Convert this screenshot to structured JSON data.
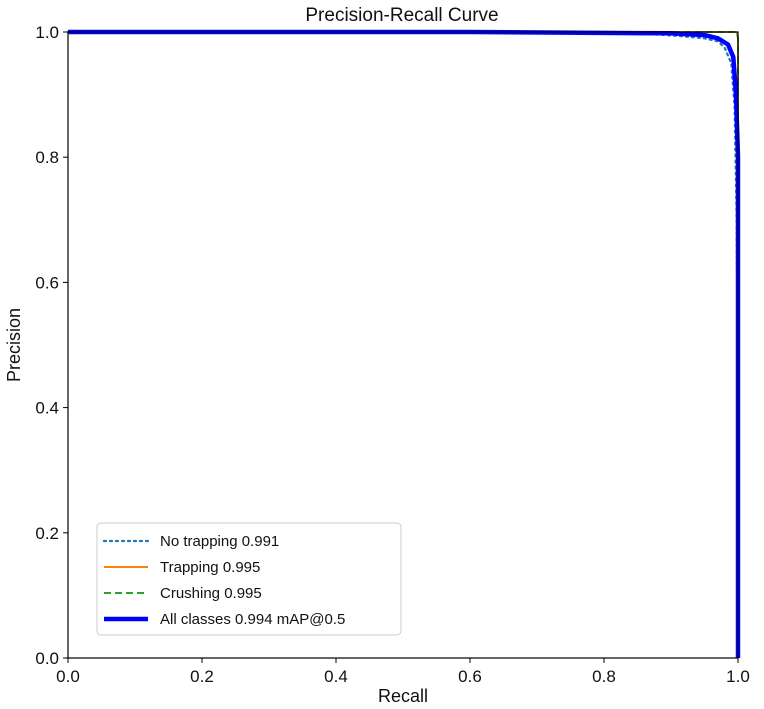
{
  "chart_data": {
    "type": "line",
    "title": "Precision-Recall Curve",
    "xlabel": "Recall",
    "ylabel": "Precision",
    "xlim": [
      0.0,
      1.0
    ],
    "ylim": [
      0.0,
      1.0
    ],
    "x_ticks": [
      "0.0",
      "0.2",
      "0.4",
      "0.6",
      "0.8",
      "1.0"
    ],
    "y_ticks": [
      "0.0",
      "0.2",
      "0.4",
      "0.6",
      "0.8",
      "1.0"
    ],
    "grid": false,
    "legend_position": "lower-left",
    "series": [
      {
        "name": "No trapping 0.991",
        "color": "#1f77b4",
        "style": "dotted",
        "x": [
          0.0,
          0.5,
          0.8,
          0.88,
          0.92,
          0.95,
          0.97,
          0.98,
          0.99,
          0.995,
          0.998,
          1.0,
          1.0
        ],
        "y": [
          1.0,
          1.0,
          0.998,
          0.996,
          0.993,
          0.99,
          0.985,
          0.975,
          0.95,
          0.88,
          0.7,
          0.3,
          0.0
        ]
      },
      {
        "name": "Trapping 0.995",
        "color": "#ff7f0e",
        "style": "solid",
        "x": [
          0.0,
          0.995,
          0.998,
          1.0,
          1.0
        ],
        "y": [
          1.0,
          1.0,
          0.999,
          0.99,
          0.0
        ]
      },
      {
        "name": "Crushing 0.995",
        "color": "#2ca02c",
        "style": "dashed",
        "x": [
          0.0,
          0.996,
          0.999,
          1.0,
          1.0
        ],
        "y": [
          1.0,
          1.0,
          0.998,
          0.99,
          0.0
        ]
      },
      {
        "name": "All classes 0.994 mAP@0.5",
        "color": "#0000ff",
        "style": "thick",
        "x": [
          0.0,
          0.6,
          0.9,
          0.95,
          0.97,
          0.985,
          0.993,
          0.997,
          1.0,
          1.0
        ],
        "y": [
          1.0,
          1.0,
          0.998,
          0.995,
          0.99,
          0.98,
          0.96,
          0.9,
          0.8,
          0.0
        ]
      }
    ]
  }
}
